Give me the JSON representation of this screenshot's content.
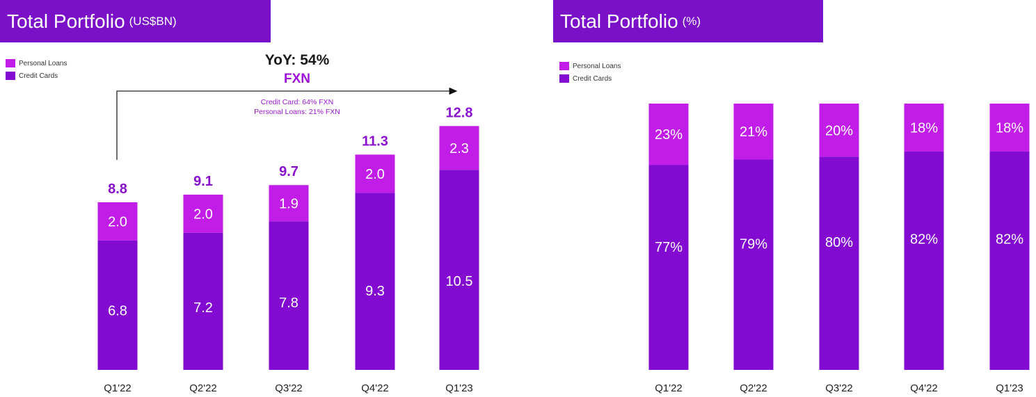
{
  "left_panel": {
    "title": "Total Portfolio",
    "title_unit": "(US$BN)",
    "legend": [
      "Personal Loans",
      "Credit Cards"
    ],
    "annotation": {
      "headline": "YoY: 54%",
      "subheadline": "FXN",
      "line1": "Credit Card: 64% FXN",
      "line2": "Personal Loans: 21% FXN"
    }
  },
  "right_panel": {
    "title": "Total Portfolio",
    "title_unit": "(%)",
    "legend": [
      "Personal Loans",
      "Credit Cards"
    ]
  },
  "colors": {
    "personal_loans": "#c21de8",
    "credit_cards": "#820ad1",
    "title_bg": "#7a10c8"
  },
  "chart_data": [
    {
      "type": "bar",
      "stacked": true,
      "title": "Total Portfolio (US$BN)",
      "categories": [
        "Q1'22",
        "Q2'22",
        "Q3'22",
        "Q4'22",
        "Q1'23"
      ],
      "series": [
        {
          "name": "Credit Cards",
          "values": [
            6.8,
            7.2,
            7.8,
            9.3,
            10.5
          ],
          "labels": [
            "6.8",
            "7.2",
            "7.8",
            "9.3",
            "10.5"
          ]
        },
        {
          "name": "Personal Loans",
          "values": [
            2.0,
            2.0,
            1.9,
            2.0,
            2.3
          ],
          "labels": [
            "2.0",
            "2.0",
            "1.9",
            "2.0",
            "2.3"
          ]
        }
      ],
      "totals": [
        8.8,
        9.1,
        9.7,
        11.3,
        12.8
      ],
      "total_labels": [
        "8.8",
        "9.1",
        "9.7",
        "11.3",
        "12.8"
      ],
      "legend_position": "top-left",
      "grid": false
    },
    {
      "type": "bar",
      "stacked": true,
      "title": "Total Portfolio (%)",
      "categories": [
        "Q1'22",
        "Q2'22",
        "Q3'22",
        "Q4'22",
        "Q1'23"
      ],
      "series": [
        {
          "name": "Credit Cards",
          "values": [
            77,
            79,
            80,
            82,
            82
          ],
          "labels": [
            "77%",
            "79%",
            "80%",
            "82%",
            "82%"
          ]
        },
        {
          "name": "Personal Loans",
          "values": [
            23,
            21,
            20,
            18,
            18
          ],
          "labels": [
            "23%",
            "21%",
            "20%",
            "18%",
            "18%"
          ]
        }
      ],
      "ylim": [
        0,
        100
      ],
      "legend_position": "top-left",
      "grid": false
    }
  ]
}
